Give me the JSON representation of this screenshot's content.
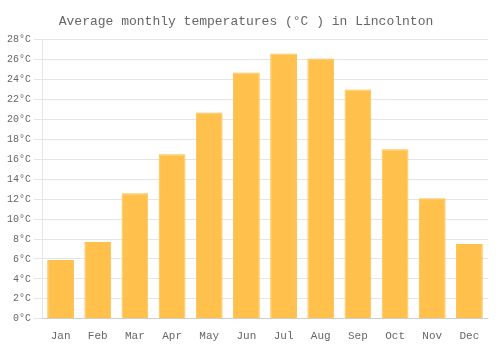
{
  "chart_data": {
    "type": "bar",
    "title": "Average monthly temperatures (°C ) in Lincolnton",
    "categories": [
      "Jan",
      "Feb",
      "Mar",
      "Apr",
      "May",
      "Jun",
      "Jul",
      "Aug",
      "Sep",
      "Oct",
      "Nov",
      "Dec"
    ],
    "values": [
      5.9,
      7.7,
      12.6,
      16.5,
      20.7,
      24.7,
      26.6,
      26.1,
      23.0,
      17.0,
      12.1,
      7.5
    ],
    "color": "#FFC04C",
    "ylim": [
      0,
      28
    ],
    "yticks": [
      {
        "value": 0,
        "label": "0°C"
      },
      {
        "value": 2,
        "label": "2°C"
      },
      {
        "value": 4,
        "label": "4°C"
      },
      {
        "value": 6,
        "label": "6°C"
      },
      {
        "value": 8,
        "label": "8°C"
      },
      {
        "value": 10,
        "label": "10°C"
      },
      {
        "value": 12,
        "label": "12°C"
      },
      {
        "value": 14,
        "label": "14°C"
      },
      {
        "value": 16,
        "label": "16°C"
      },
      {
        "value": 18,
        "label": "18°C"
      },
      {
        "value": 20,
        "label": "20°C"
      },
      {
        "value": 22,
        "label": "22°C"
      },
      {
        "value": 24,
        "label": "24°C"
      },
      {
        "value": 26,
        "label": "26°C"
      },
      {
        "value": 28,
        "label": "28°C"
      }
    ],
    "grid": true
  }
}
